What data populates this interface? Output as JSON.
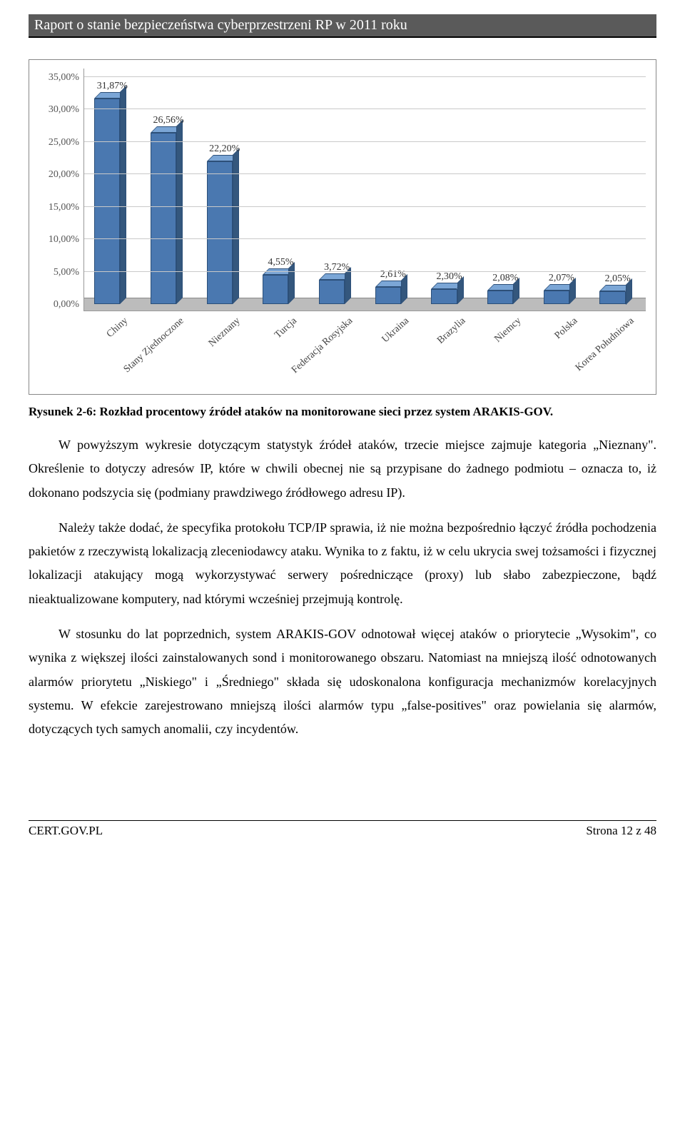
{
  "header": {
    "title": "Raport o stanie bezpieczeństwa cyberprzestrzeni RP w 2011 roku"
  },
  "chart": {
    "type": "bar",
    "ylim": [
      0,
      35
    ],
    "ytick_step": 5,
    "y_ticks": [
      "35,00%",
      "30,00%",
      "25,00%",
      "20,00%",
      "15,00%",
      "10,00%",
      "5,00%",
      "0,00%"
    ],
    "bar_color_front": "#4a78b0",
    "bar_color_top": "#7ba6d6",
    "bar_color_side": "#34577d",
    "grid_color": "#c9c9c9",
    "floor_color": "#bcbcbc",
    "label_fontsize": 14,
    "categories": [
      "Chiny",
      "Stany Zjednoczone",
      "Nieznany",
      "Turcja",
      "Federacja Rosyjska",
      "Ukraina",
      "Brazylia",
      "Niemcy",
      "Polska",
      "Korea Południowa"
    ],
    "value_labels": [
      "31,87%",
      "26,56%",
      "22,20%",
      "4,55%",
      "3,72%",
      "2,61%",
      "2,30%",
      "2,08%",
      "2,07%",
      "2,05%"
    ],
    "values": [
      31.87,
      26.56,
      22.2,
      4.55,
      3.72,
      2.61,
      2.3,
      2.08,
      2.07,
      2.05
    ]
  },
  "caption": "Rysunek 2-6: Rozkład procentowy źródeł ataków na monitorowane sieci przez system ARAKIS-GOV.",
  "paragraphs": {
    "p1": "W powyższym wykresie dotyczącym statystyk źródeł ataków, trzecie miejsce zajmuje kategoria „Nieznany\". Określenie to dotyczy adresów IP, które w chwili obecnej nie są przypisane do żadnego podmiotu – oznacza to, iż dokonano podszycia się (podmiany prawdziwego źródłowego adresu IP).",
    "p2": "Należy także dodać, że specyfika protokołu TCP/IP sprawia, iż nie można bezpośrednio łączyć źródła pochodzenia pakietów z rzeczywistą lokalizacją zleceniodawcy ataku. Wynika to z faktu, iż w celu ukrycia swej tożsamości i fizycznej lokalizacji atakujący mogą wykorzystywać serwery pośredniczące (proxy) lub słabo zabezpieczone, bądź nieaktualizowane komputery, nad którymi wcześniej przejmują kontrolę.",
    "p3": "W stosunku do lat poprzednich, system ARAKIS-GOV odnotował więcej ataków o priorytecie „Wysokim\", co wynika z większej ilości zainstalowanych sond i monitorowanego obszaru. Natomiast na mniejszą ilość odnotowanych alarmów priorytetu „Niskiego\" i „Średniego\" składa się udoskonalona konfiguracja mechanizmów korelacyjnych systemu. W efekcie zarejestrowano mniejszą ilości alarmów typu „false-positives\" oraz powielania się alarmów, dotyczących tych samych anomalii, czy incydentów."
  },
  "footer": {
    "left": "CERT.GOV.PL",
    "right": "Strona 12 z 48"
  }
}
